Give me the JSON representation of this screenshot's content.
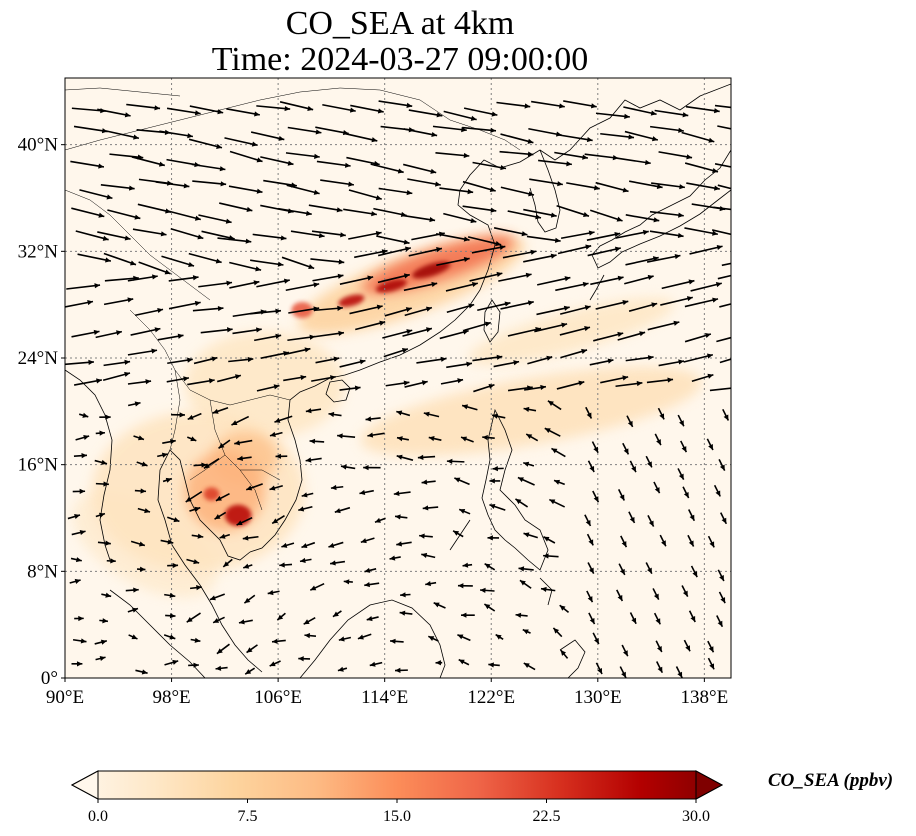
{
  "title": {
    "line1": "CO_SEA at 4km",
    "line2": "Time: 2024-03-27 09:00:00"
  },
  "colorbar": {
    "label": "CO_SEA (ppbv)",
    "ticks": [
      "0.0",
      "7.5",
      "15.0",
      "22.5",
      "30.0"
    ],
    "tick_values": [
      0,
      7.5,
      15,
      22.5,
      30
    ],
    "min": 0,
    "max": 30,
    "colors": [
      "#fff7ec",
      "#fee8c8",
      "#fdd49e",
      "#fdbb84",
      "#fc8d59",
      "#ef6548",
      "#d7301f",
      "#b30000",
      "#7f0000"
    ]
  },
  "map": {
    "lon_range": [
      90,
      140
    ],
    "lat_range": [
      0,
      45
    ],
    "lon_ticks": [
      90,
      98,
      106,
      114,
      122,
      130,
      138
    ],
    "lat_ticks": [
      0,
      8,
      16,
      24,
      32,
      40
    ],
    "lon_labels": [
      "90°E",
      "98°E",
      "106°E",
      "114°E",
      "122°E",
      "130°E",
      "138°E"
    ],
    "lat_labels": [
      "0°",
      "8°N",
      "16°N",
      "24°N",
      "32°N",
      "40°N"
    ],
    "gridline_color": "#808080",
    "coast_color": "#000000",
    "arrow_color": "#000000"
  },
  "plumes": [
    {
      "lon": 118,
      "lat": 31,
      "rx": 6,
      "ry": 1.2,
      "value": 18,
      "rot": -18
    },
    {
      "lon": 117.5,
      "lat": 30.6,
      "rx": 1.5,
      "ry": 0.45,
      "value": 28,
      "rot": -18
    },
    {
      "lon": 114.5,
      "lat": 29.4,
      "rx": 1.2,
      "ry": 0.4,
      "value": 27,
      "rot": -15
    },
    {
      "lon": 111.5,
      "lat": 28.3,
      "rx": 1.0,
      "ry": 0.4,
      "value": 26,
      "rot": -15
    },
    {
      "lon": 107.8,
      "lat": 27.6,
      "rx": 0.8,
      "ry": 0.6,
      "value": 20,
      "rot": 0
    },
    {
      "lon": 116,
      "lat": 29.5,
      "rx": 9,
      "ry": 2.2,
      "value": 8,
      "rot": -20
    },
    {
      "lon": 103,
      "lat": 12.2,
      "rx": 1.0,
      "ry": 0.8,
      "value": 26,
      "rot": 0
    },
    {
      "lon": 101,
      "lat": 13.8,
      "rx": 0.6,
      "ry": 0.5,
      "value": 22,
      "rot": 0
    },
    {
      "lon": 102,
      "lat": 14,
      "rx": 3,
      "ry": 3,
      "value": 12,
      "rot": 0
    },
    {
      "lon": 103.5,
      "lat": 16.5,
      "rx": 2.5,
      "ry": 2,
      "value": 10,
      "rot": 0
    },
    {
      "lon": 100,
      "lat": 14,
      "rx": 8,
      "ry": 6,
      "value": 4.5,
      "rot": 0
    },
    {
      "lon": 125,
      "lat": 20,
      "rx": 13,
      "ry": 2.5,
      "value": 5,
      "rot": -10
    },
    {
      "lon": 128,
      "lat": 26,
      "rx": 8,
      "ry": 1.5,
      "value": 4,
      "rot": -15
    },
    {
      "lon": 96,
      "lat": 10,
      "rx": 6,
      "ry": 3,
      "value": 3,
      "rot": 30
    },
    {
      "lon": 105,
      "lat": 22,
      "rx": 6,
      "ry": 4,
      "value": 4,
      "rot": 0
    }
  ]
}
